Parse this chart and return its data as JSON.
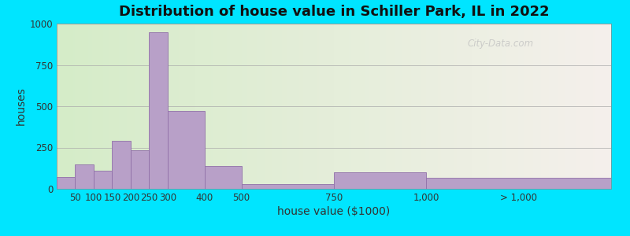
{
  "title": "Distribution of house value in Schiller Park, IL in 2022",
  "xlabel": "house value ($1000)",
  "ylabel": "houses",
  "bar_color": "#b8a0c8",
  "bar_edge_color": "#9070a8",
  "background_outer": "#00e5ff",
  "background_inner_left": "#d5ecc8",
  "background_inner_right": "#f5f0ec",
  "tick_labels": [
    "50",
    "100",
    "150",
    "200",
    "250",
    "300",
    "400",
    "500",
    "750",
    "1,000",
    "> 1,000"
  ],
  "tick_positions": [
    50,
    100,
    150,
    200,
    250,
    300,
    400,
    500,
    750,
    1000,
    1250
  ],
  "bar_lefts": [
    0,
    50,
    100,
    150,
    200,
    250,
    300,
    400,
    500,
    750,
    1000
  ],
  "bar_rights": [
    50,
    100,
    150,
    200,
    250,
    300,
    400,
    500,
    750,
    1000,
    1500
  ],
  "values": [
    70,
    150,
    110,
    290,
    235,
    950,
    470,
    140,
    30,
    100,
    65
  ],
  "xlim_left": 0,
  "xlim_right": 1500,
  "ylim": [
    0,
    1000
  ],
  "yticks": [
    0,
    250,
    500,
    750,
    1000
  ],
  "title_fontsize": 13,
  "axis_label_fontsize": 10,
  "tick_fontsize": 8.5,
  "watermark_text": "City-Data.com"
}
